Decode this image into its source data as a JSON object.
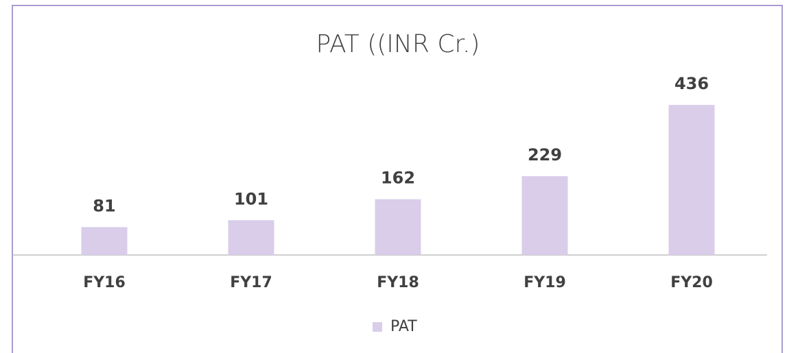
{
  "chart_data": {
    "type": "bar",
    "title": "PAT ((INR Cr.)",
    "categories": [
      "FY16",
      "FY17",
      "FY18",
      "FY19",
      "FY20"
    ],
    "series": [
      {
        "name": "PAT",
        "color": "#d9cdea",
        "values": [
          81,
          101,
          162,
          229,
          436
        ]
      }
    ],
    "legend": "bottom"
  }
}
